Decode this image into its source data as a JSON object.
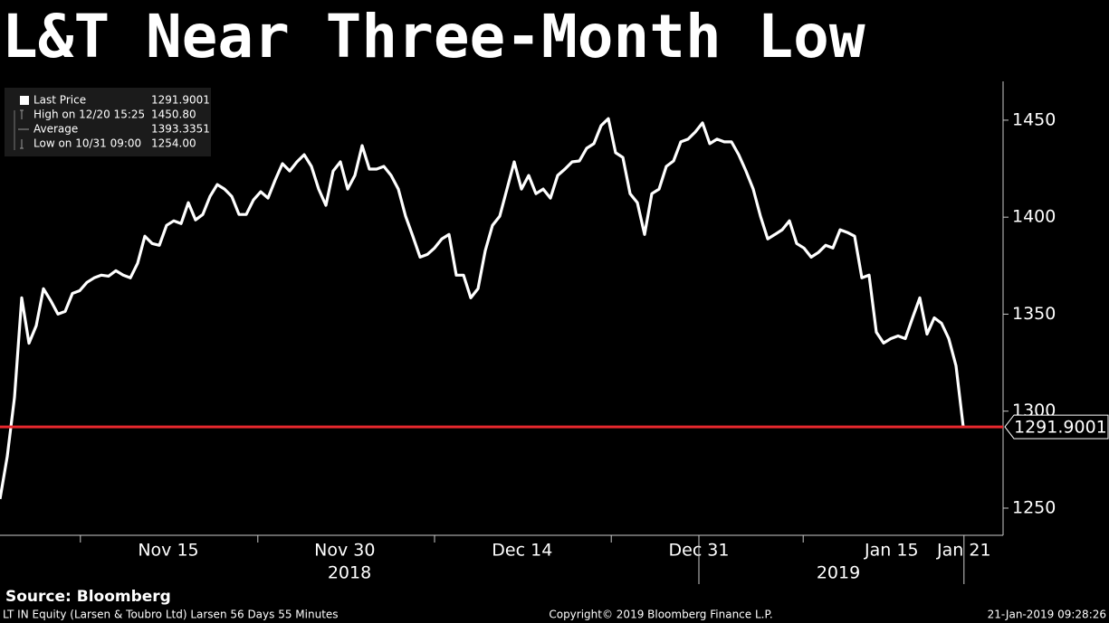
{
  "chart_data": {
    "type": "line",
    "title": "L&T Near Three-Month Low",
    "source": "Source: Bloomberg",
    "footer_left": "LT IN Equity (Larsen & Toubro Ltd) Larsen 56 Days 55 Minutes",
    "footer_center": "Copyright© 2019 Bloomberg Finance L.P.",
    "footer_right": "21-Jan-2019 09:28:26",
    "legend": [
      {
        "label": "Last Price",
        "value": "1291.9001"
      },
      {
        "label": "High on 12/20 15:25",
        "value": "1450.80"
      },
      {
        "label": "Average",
        "value": "1393.3351"
      },
      {
        "label": "Low on 10/31 09:00",
        "value": "1254.00"
      }
    ],
    "last_price": 1291.9001,
    "last_price_color": "#e8282e",
    "series": [
      {
        "name": "Last Price",
        "color": "#ffffff",
        "x": [
          0,
          1,
          2,
          3,
          4,
          5,
          6,
          7,
          8,
          9,
          10,
          11,
          12,
          13,
          14,
          15,
          16,
          17,
          18,
          19,
          20,
          21,
          22,
          23,
          24,
          25,
          26,
          27,
          28,
          29,
          30,
          31,
          32,
          33,
          34,
          35,
          36,
          37,
          38,
          39,
          40,
          41,
          42,
          43,
          44,
          45,
          46,
          47,
          48,
          49,
          50,
          51,
          52,
          53,
          54,
          55,
          56,
          57,
          58,
          59,
          60,
          61,
          62,
          63,
          64,
          65,
          66,
          67,
          68,
          69,
          70,
          71,
          72,
          73,
          74,
          75,
          76,
          77,
          78,
          79,
          80,
          81,
          82,
          83,
          84,
          85,
          86,
          87,
          88,
          89,
          90,
          91,
          92,
          93,
          94,
          95,
          96,
          97,
          98,
          99,
          100,
          101,
          102,
          103,
          104,
          105,
          106,
          107,
          108,
          109,
          110,
          111,
          112,
          113,
          114,
          115,
          116,
          117,
          118,
          119,
          120,
          121,
          122,
          123,
          124,
          125,
          126,
          127,
          128,
          129,
          130,
          131,
          132,
          133
        ],
        "values": [
          1254.7,
          1276.6,
          1307,
          1358.4,
          1335,
          1344,
          1363.1,
          1357,
          1350,
          1351.4,
          1360.7,
          1362.1,
          1366.4,
          1368.7,
          1370.1,
          1369.6,
          1372.4,
          1370.1,
          1368.7,
          1376.2,
          1390.2,
          1386.4,
          1385.5,
          1395.8,
          1398.1,
          1396.7,
          1407.5,
          1398.6,
          1401.4,
          1410.7,
          1416.8,
          1414.5,
          1410.7,
          1401.4,
          1401.4,
          1408.9,
          1413.1,
          1409.8,
          1419.2,
          1427.6,
          1423.8,
          1428.5,
          1432.2,
          1426.2,
          1414.5,
          1406.1,
          1423.8,
          1428.5,
          1414.5,
          1421.5,
          1436.9,
          1424.8,
          1424.8,
          1426.2,
          1421.5,
          1414.5,
          1400.5,
          1390.2,
          1379.4,
          1380.8,
          1384.1,
          1388.8,
          1391.1,
          1370.1,
          1370.1,
          1358.4,
          1363.1,
          1382.7,
          1395.8,
          1400.5,
          1414.5,
          1428.5,
          1414.5,
          1421.5,
          1412.1,
          1414.5,
          1409.8,
          1421.5,
          1424.8,
          1428.5,
          1429,
          1435.5,
          1437.9,
          1447.2,
          1450.8,
          1433.2,
          1430.8,
          1412.1,
          1407.5,
          1391.1,
          1412.1,
          1414.5,
          1426.2,
          1429,
          1438.8,
          1440.2,
          1443.9,
          1448.6,
          1437.9,
          1440.2,
          1438.8,
          1438.8,
          1432.2,
          1423.8,
          1414.5,
          1400.5,
          1388.8,
          1391.1,
          1393.5,
          1398.1,
          1386.4,
          1384.1,
          1379.4,
          1381.8,
          1385.5,
          1384.1,
          1393.5,
          1392.1,
          1390.2,
          1368.7,
          1370.1,
          1340.7,
          1335.1,
          1337.4,
          1338.8,
          1337.4,
          1348.1,
          1358.4,
          1339.7,
          1348.1,
          1345.3,
          1337.4,
          1323.4,
          1291.9
        ]
      }
    ],
    "xlim": [
      0,
      138.5
    ],
    "xticks": [
      {
        "value": 23.25,
        "label": "Nov 15"
      },
      {
        "value": 47.6,
        "label": "Nov 30"
      },
      {
        "value": 72.1,
        "label": "Dec 14"
      },
      {
        "value": 96.5,
        "label": "Dec 31"
      },
      {
        "value": 123.1,
        "label": "Jan 15"
      },
      {
        "value": 133.1,
        "label": "Jan 21"
      }
    ],
    "minor_xticks": [
      11.1,
      35.6,
      60,
      84.4,
      110.9
    ],
    "year_labels": [
      {
        "value": 48.25,
        "label": "2018"
      },
      {
        "value": 115.75,
        "label": "2019"
      }
    ],
    "year_breaks": [
      96.5,
      133.1
    ],
    "ylim": [
      1236,
      1470
    ],
    "yticks": [
      1250,
      1300,
      1350,
      1400,
      1450
    ]
  }
}
